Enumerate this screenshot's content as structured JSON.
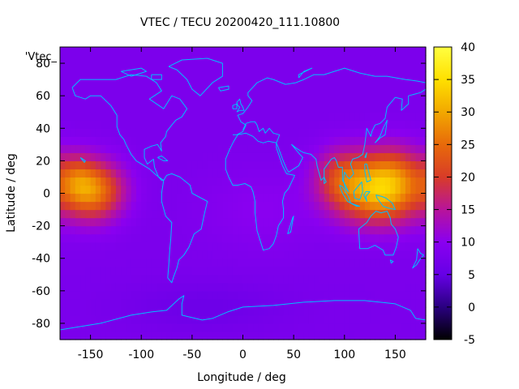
{
  "chart_data": {
    "type": "heatmap",
    "title": "VTEC / TECU 20200420_111.10800",
    "xlabel": "Longitude / deg",
    "ylabel": "Latitude / deg",
    "key_label": "'Vtec_",
    "xlim": [
      -180,
      180
    ],
    "ylim": [
      -90,
      90
    ],
    "x_ticks": [
      -150,
      -100,
      -50,
      0,
      50,
      100,
      150
    ],
    "y_ticks": [
      -80,
      -60,
      -40,
      -20,
      0,
      20,
      40,
      60,
      80
    ],
    "colorbar": {
      "range": [
        -5,
        40
      ],
      "ticks": [
        -5,
        0,
        5,
        10,
        15,
        20,
        25,
        30,
        35,
        40
      ],
      "palette": [
        "#000000",
        "#2a0080",
        "#6600e6",
        "#8a00f0",
        "#b8149a",
        "#d83c28",
        "#e86a0a",
        "#f2a800",
        "#ffe000",
        "#ffff40"
      ]
    },
    "coastline_color": "#00bfff",
    "grid_step_deg": 5,
    "field_model": {
      "background_tecu": 8,
      "anomalies": [
        {
          "lon": 135,
          "lat": 2,
          "lon_width": 40,
          "lat_width": 20,
          "peak_tecu": 23
        },
        {
          "lon": 150,
          "lat": 15,
          "lon_width": 30,
          "lat_width": 18,
          "peak_tecu": 6
        },
        {
          "lon": 95,
          "lat": 10,
          "lon_width": 25,
          "lat_width": 18,
          "peak_tecu": 9
        },
        {
          "lon": -148,
          "lat": 2,
          "lon_width": 30,
          "lat_width": 18,
          "peak_tecu": 19
        },
        {
          "lon": -165,
          "lat": 10,
          "lon_width": 18,
          "lat_width": 15,
          "peak_tecu": 6
        },
        {
          "lon": 20,
          "lat": -10,
          "lon_width": 60,
          "lat_width": 25,
          "peak_tecu": 2
        },
        {
          "lon": -40,
          "lat": -70,
          "lon_width": 80,
          "lat_width": 15,
          "peak_tecu": -2
        }
      ]
    }
  }
}
